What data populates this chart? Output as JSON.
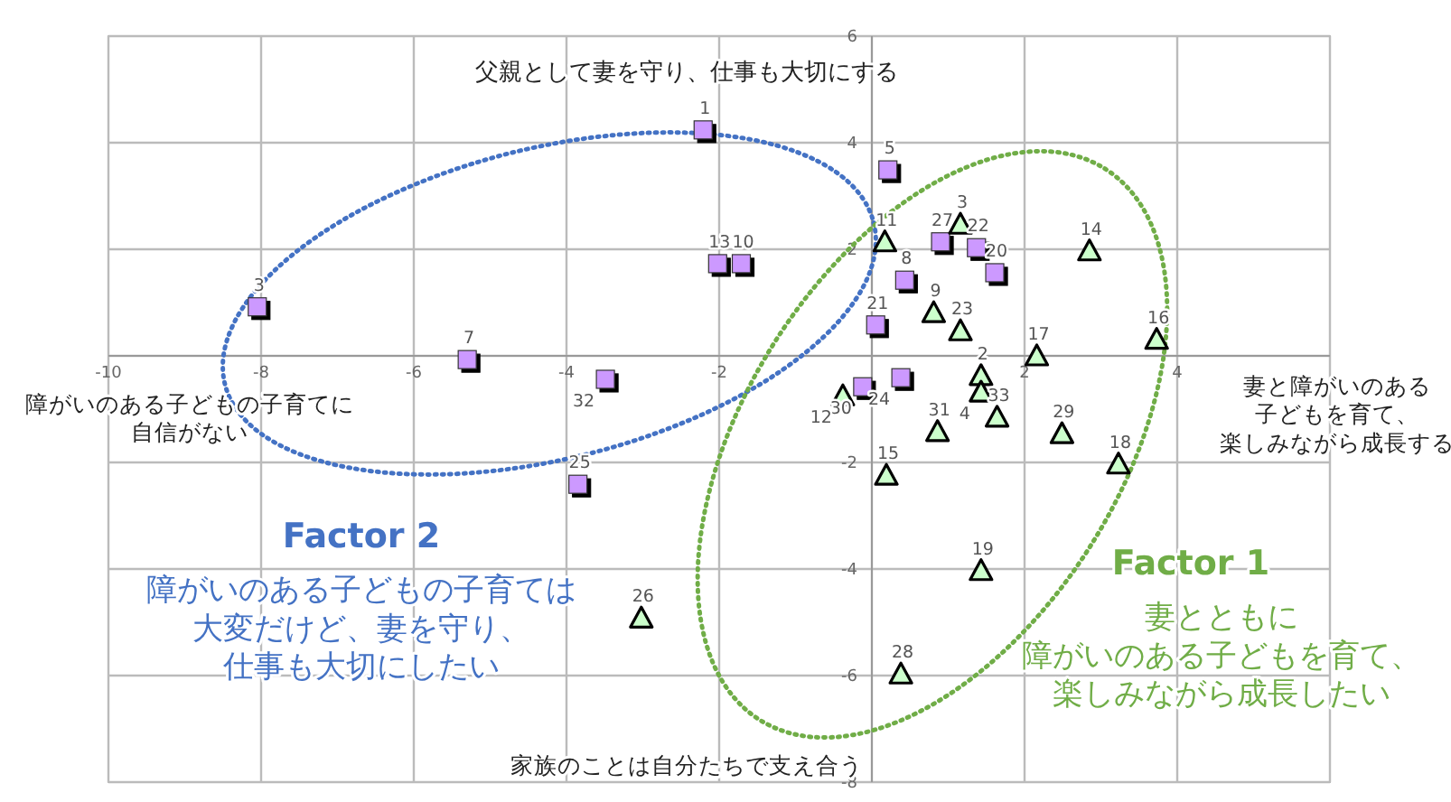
{
  "chart_data": {
    "type": "scatter",
    "xlim": [
      -10,
      6
    ],
    "ylim": [
      -8,
      6
    ],
    "xticks": [
      -10,
      -8,
      -6,
      -4,
      -2,
      {
        "value": 0,
        "label": null
      },
      2,
      4,
      {
        "value": 6,
        "label": null
      }
    ],
    "yticks": [
      -8,
      -6,
      -4,
      -2,
      {
        "value": 0,
        "label": null
      },
      2,
      4,
      6
    ],
    "grid": true,
    "series": [
      {
        "marker": "square",
        "color": "#cc99ff",
        "x": [
          -2.21,
          -8.05,
          -5.3,
          -3.49,
          -2.02,
          -1.71,
          -3.85,
          0.21,
          0.9,
          1.37,
          1.61,
          0.43,
          0.05,
          0.38,
          -0.12
        ],
        "values": [
          4.24,
          0.92,
          -0.07,
          -0.44,
          1.73,
          1.73,
          -2.41,
          3.49,
          2.14,
          2.03,
          1.56,
          1.42,
          0.58,
          -0.41,
          -0.58
        ]
      },
      {
        "marker": "triangle",
        "color": "#ccffcc",
        "x": [
          1.16,
          0.17,
          2.85,
          0.81,
          1.16,
          2.16,
          3.73,
          1.43,
          1.43,
          1.64,
          -0.38,
          0.86,
          2.49,
          3.23,
          0.19,
          1.43,
          0.38,
          -3.02
        ],
        "values": [
          2.47,
          2.14,
          1.97,
          0.81,
          0.47,
          0.0,
          0.31,
          -0.37,
          -0.68,
          -1.15,
          -0.75,
          -1.42,
          -1.46,
          -2.03,
          -2.24,
          -4.03,
          -5.97,
          -4.92
        ]
      }
    ],
    "annotations": [
      "父親として妻を守り、仕事も大切にする",
      "妻と障がいのある子どもを育て、楽しみながら成長する",
      "障がいのある子どもの子育てに自信がない",
      "家族のことは自分たちで支え合う",
      "Factor 2",
      "障がいのある子どもの子育ては大変だけど、妻を守り、仕事も大切にしたい",
      "Factor 1",
      "妻とともに障がいのある子どもを育て、楽しみながら成長したい",
      {
        "text": "1",
        "x": -2.21,
        "y": 4.24
      },
      {
        "text": "3",
        "x": -8.05,
        "y": 0.92
      },
      {
        "text": "7",
        "x": -5.3,
        "y": -0.07
      },
      {
        "text": "32",
        "x": -3.49,
        "y": -0.44
      },
      {
        "text": "13",
        "x": -2.02,
        "y": 1.73
      },
      {
        "text": "10",
        "x": -1.71,
        "y": 1.73
      },
      {
        "text": "25",
        "x": -3.85,
        "y": -2.41
      },
      {
        "text": "5",
        "x": 0.21,
        "y": 3.49
      },
      {
        "text": "27",
        "x": 0.9,
        "y": 2.14
      },
      {
        "text": "22",
        "x": 1.37,
        "y": 2.03
      },
      {
        "text": "20",
        "x": 1.61,
        "y": 1.56
      },
      {
        "text": "8",
        "x": 0.43,
        "y": 1.42
      },
      {
        "text": "21",
        "x": 0.05,
        "y": 0.58
      },
      {
        "text": "24",
        "x": 0.38,
        "y": -0.41
      },
      {
        "text": "30",
        "x": -0.12,
        "y": -0.58
      },
      {
        "text": "3",
        "x": 1.16,
        "y": 2.47
      },
      {
        "text": "11",
        "x": 0.17,
        "y": 2.14
      },
      {
        "text": "14",
        "x": 2.85,
        "y": 1.97
      },
      {
        "text": "9",
        "x": 0.81,
        "y": 0.81
      },
      {
        "text": "23",
        "x": 1.16,
        "y": 0.47
      },
      {
        "text": "17",
        "x": 2.16,
        "y": 0.0
      },
      {
        "text": "16",
        "x": 3.73,
        "y": 0.31
      },
      {
        "text": "2",
        "x": 1.43,
        "y": -0.37
      },
      {
        "text": "4",
        "x": 1.43,
        "y": -0.68
      },
      {
        "text": "33",
        "x": 1.64,
        "y": -1.15
      },
      {
        "text": "12",
        "x": -0.38,
        "y": -0.75
      },
      {
        "text": "31",
        "x": 0.86,
        "y": -1.42
      },
      {
        "text": "29",
        "x": 2.49,
        "y": -1.46
      },
      {
        "text": "18",
        "x": 3.23,
        "y": -2.03
      },
      {
        "text": "15",
        "x": 0.19,
        "y": -2.24
      },
      {
        "text": "19",
        "x": 1.43,
        "y": -4.03
      },
      {
        "text": "28",
        "x": 0.38,
        "y": -5.97
      },
      {
        "text": "26",
        "x": -3.02,
        "y": -4.92
      }
    ]
  }
}
